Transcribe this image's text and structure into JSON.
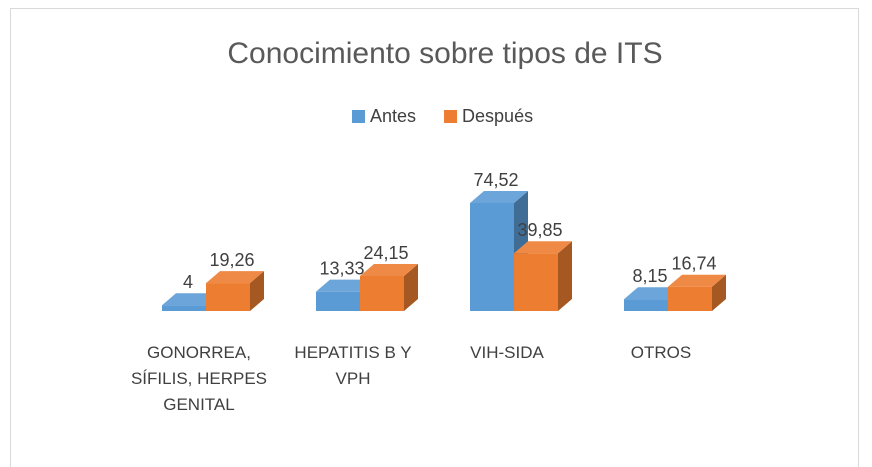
{
  "chart_data": {
    "type": "bar3d",
    "title": "Conocimiento sobre tipos de ITS",
    "categories": [
      "GONORREA, SÍFILIS, HERPES GENITAL",
      "HEPATITIS B  Y VPH",
      "VIH-SIDA",
      "OTROS"
    ],
    "series": [
      {
        "name": "Antes",
        "color": "#5b9bd5",
        "values": [
          4,
          13.33,
          74.52,
          8.15
        ],
        "value_labels": [
          "4",
          "13,33",
          "74,52",
          "8,15"
        ]
      },
      {
        "name": "Después",
        "color": "#ed7d31",
        "values": [
          19.26,
          24.15,
          39.85,
          16.74
        ],
        "value_labels": [
          "19,26",
          "24,15",
          "39,85",
          "16,74"
        ]
      }
    ],
    "legend": "top"
  }
}
